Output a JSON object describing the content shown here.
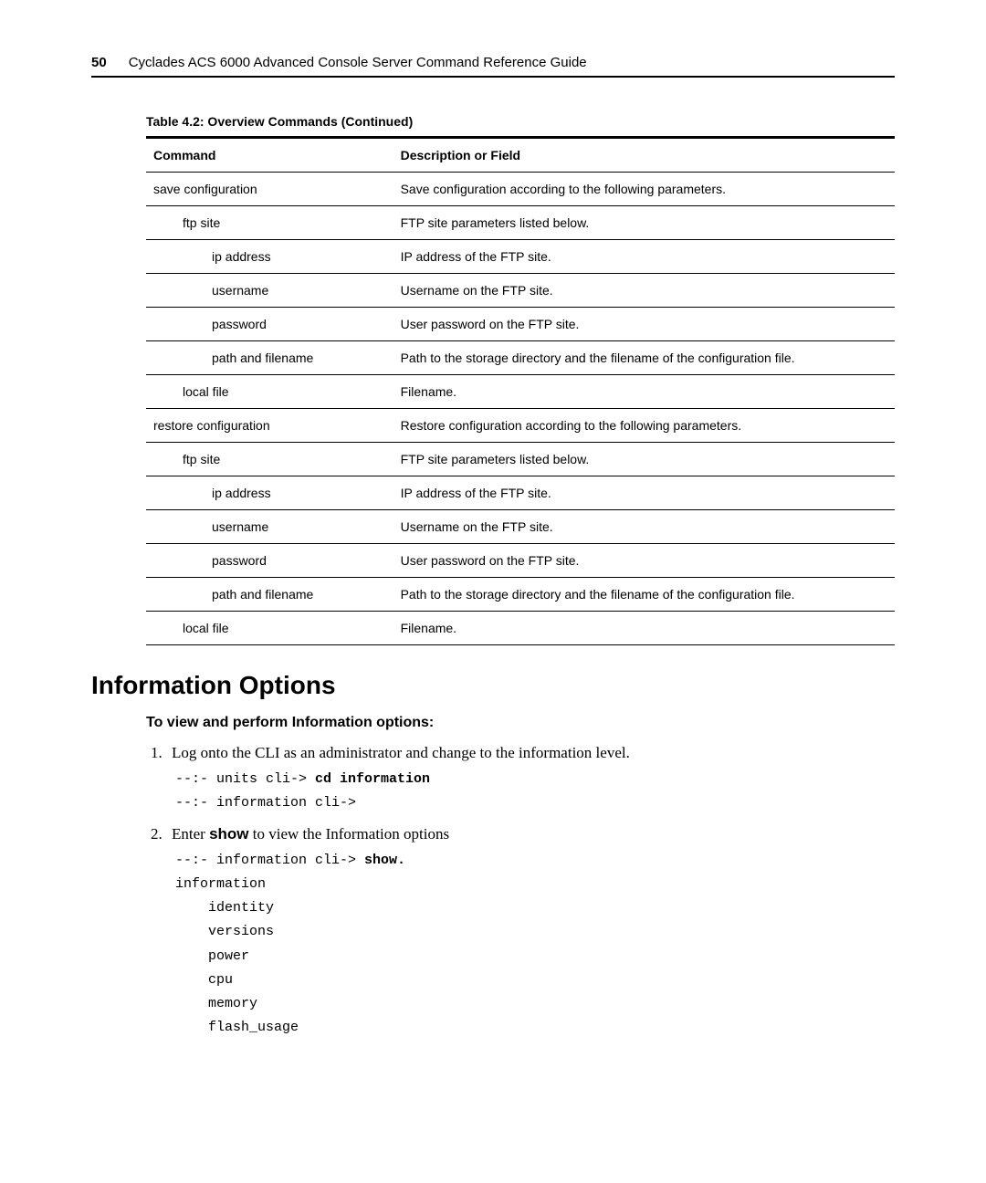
{
  "header": {
    "page_number": "50",
    "title": "Cyclades ACS 6000 Advanced Console Server Command Reference Guide"
  },
  "table": {
    "caption": "Table 4.2: Overview Commands (Continued)",
    "columns": [
      "Command",
      "Description or Field"
    ],
    "rows": [
      {
        "indent": 0,
        "command": "save configuration",
        "description": "Save configuration according to the following parameters."
      },
      {
        "indent": 1,
        "command": "ftp site",
        "description": "FTP site parameters listed below."
      },
      {
        "indent": 2,
        "command": "ip address",
        "description": "IP address of the FTP site."
      },
      {
        "indent": 2,
        "command": "username",
        "description": "Username on the FTP site."
      },
      {
        "indent": 2,
        "command": "password",
        "description": "User password on the FTP site."
      },
      {
        "indent": 2,
        "command": "path and filename",
        "description": "Path to the storage directory and the filename of the configuration file."
      },
      {
        "indent": 1,
        "command": "local file",
        "description": "Filename."
      },
      {
        "indent": 0,
        "command": "restore configuration",
        "description": "Restore configuration according to the following parameters."
      },
      {
        "indent": 1,
        "command": "ftp site",
        "description": "FTP site parameters listed below."
      },
      {
        "indent": 2,
        "command": "ip address",
        "description": "IP address of the FTP site."
      },
      {
        "indent": 2,
        "command": "username",
        "description": "Username on the FTP site."
      },
      {
        "indent": 2,
        "command": "password",
        "description": "User password on the FTP site."
      },
      {
        "indent": 2,
        "command": "path and filename",
        "description": "Path to the storage directory and the filename of the configuration file."
      },
      {
        "indent": 1,
        "command": "local file",
        "description": "Filename."
      }
    ]
  },
  "section": {
    "heading": "Information Options",
    "sub_heading": "To view and perform Information options:",
    "steps": [
      {
        "text_before": "Log onto the CLI as an administrator and change to the information level.",
        "code_lines": [
          {
            "prefix": "--:- units cli-> ",
            "bold": "cd information",
            "suffix": ""
          },
          {
            "prefix": "--:- information cli->",
            "bold": "",
            "suffix": ""
          }
        ]
      },
      {
        "text_before_pre": "Enter ",
        "text_bold": "show",
        "text_before_post": " to view the Information options",
        "code_lines": [
          {
            "prefix": "--:- information cli-> ",
            "bold": "show.",
            "suffix": ""
          },
          {
            "prefix": "information",
            "bold": "",
            "suffix": ""
          },
          {
            "prefix": "    identity",
            "bold": "",
            "suffix": ""
          },
          {
            "prefix": "    versions",
            "bold": "",
            "suffix": ""
          },
          {
            "prefix": "    power",
            "bold": "",
            "suffix": ""
          },
          {
            "prefix": "    cpu",
            "bold": "",
            "suffix": ""
          },
          {
            "prefix": "    memory",
            "bold": "",
            "suffix": ""
          },
          {
            "prefix": "    flash_usage",
            "bold": "",
            "suffix": ""
          }
        ]
      }
    ]
  }
}
